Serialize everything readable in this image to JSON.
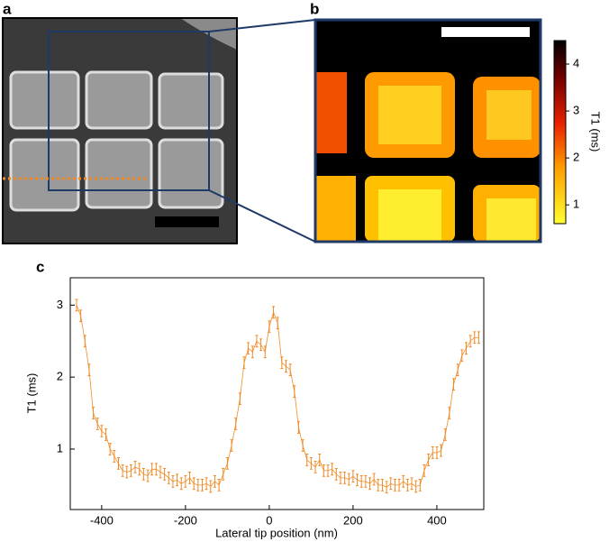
{
  "panel_labels": [
    "a",
    "b",
    "c"
  ],
  "colorbar": {
    "label": "T1 (ms)",
    "lim": [
      0.6,
      4.5
    ],
    "ticks": [
      1,
      2,
      3,
      4
    ]
  },
  "chart_data": {
    "type": "line",
    "xlabel": "Lateral tip position (nm)",
    "ylabel": "T1 (ms)",
    "xlim": [
      -475,
      512
    ],
    "ylim": [
      0.16,
      3.38
    ],
    "xticks": [
      -400,
      -200,
      0,
      200,
      400
    ],
    "yticks": [
      1,
      2,
      3
    ],
    "series": [
      {
        "color": "#f08a24",
        "error": 0.08,
        "x": [
          -460,
          -450,
          -440,
          -430,
          -420,
          -410,
          -400,
          -390,
          -380,
          -370,
          -360,
          -350,
          -340,
          -330,
          -320,
          -310,
          -300,
          -290,
          -280,
          -270,
          -260,
          -250,
          -240,
          -230,
          -220,
          -210,
          -200,
          -190,
          -180,
          -170,
          -160,
          -150,
          -140,
          -130,
          -120,
          -110,
          -100,
          -90,
          -80,
          -70,
          -60,
          -50,
          -40,
          -30,
          -20,
          -10,
          0,
          10,
          20,
          30,
          40,
          50,
          60,
          70,
          80,
          90,
          100,
          110,
          120,
          130,
          140,
          150,
          160,
          170,
          180,
          190,
          200,
          210,
          220,
          230,
          240,
          250,
          260,
          270,
          280,
          290,
          300,
          310,
          320,
          330,
          340,
          350,
          360,
          370,
          380,
          390,
          400,
          410,
          420,
          430,
          440,
          450,
          460,
          470,
          480,
          490,
          500
        ],
        "values": [
          3.0,
          2.85,
          2.5,
          2.1,
          1.5,
          1.35,
          1.25,
          1.2,
          1.0,
          0.9,
          0.8,
          0.7,
          0.68,
          0.7,
          0.75,
          0.72,
          0.65,
          0.63,
          0.72,
          0.72,
          0.68,
          0.65,
          0.6,
          0.55,
          0.57,
          0.52,
          0.55,
          0.6,
          0.52,
          0.5,
          0.5,
          0.52,
          0.48,
          0.55,
          0.5,
          0.65,
          0.8,
          1.05,
          1.35,
          1.7,
          2.2,
          2.4,
          2.35,
          2.5,
          2.45,
          2.35,
          2.7,
          2.9,
          2.75,
          2.2,
          2.15,
          2.1,
          1.8,
          1.3,
          1.05,
          0.85,
          0.8,
          0.75,
          0.85,
          0.7,
          0.7,
          0.72,
          0.65,
          0.6,
          0.6,
          0.58,
          0.62,
          0.57,
          0.55,
          0.55,
          0.52,
          0.58,
          0.5,
          0.5,
          0.47,
          0.52,
          0.5,
          0.5,
          0.55,
          0.5,
          0.52,
          0.48,
          0.5,
          0.7,
          0.85,
          0.95,
          0.95,
          0.98,
          1.2,
          1.5,
          1.9,
          2.1,
          2.3,
          2.4,
          2.5,
          2.55,
          2.55
        ]
      }
    ]
  }
}
